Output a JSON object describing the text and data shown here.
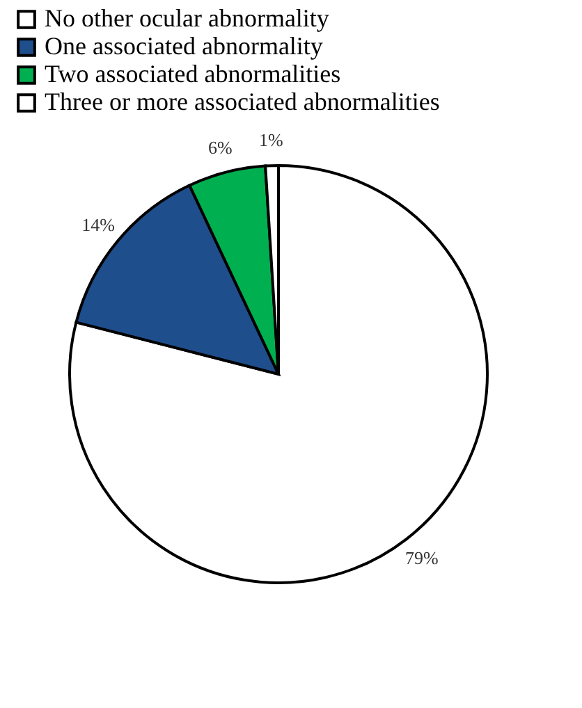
{
  "chart_data": {
    "type": "pie",
    "categories": [
      "No other ocular abnormality",
      "One associated abnormality",
      "Two associated abnormalities",
      "Three or more associated abnormalities"
    ],
    "values": [
      79,
      14,
      6,
      1
    ],
    "colors": [
      "#ffffff",
      "#1f4e8c",
      "#00b050",
      "#ffffff"
    ],
    "value_labels": [
      "79%",
      "14%",
      "6%",
      "1%"
    ],
    "legend": "top left"
  }
}
